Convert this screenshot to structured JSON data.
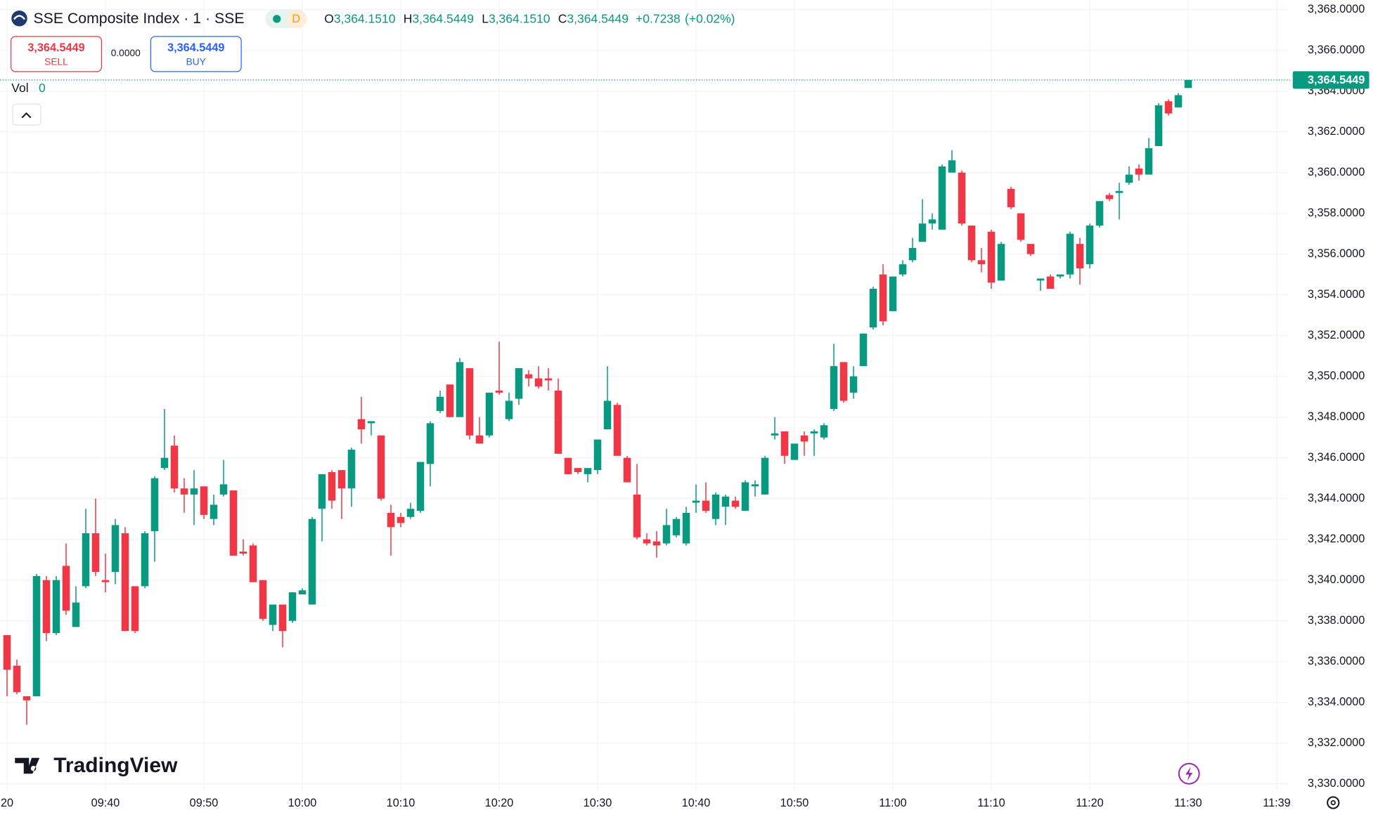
{
  "header": {
    "symbol": "SSE Composite Index · 1 · SSE",
    "badge": "D",
    "ohlc": [
      {
        "key": "O",
        "value": "3,364.1510"
      },
      {
        "key": "H",
        "value": "3,364.5449"
      },
      {
        "key": "L",
        "value": "3,364.1510"
      },
      {
        "key": "C",
        "value": "3,364.5449"
      }
    ],
    "change": "+0.7238",
    "change_percent": "(+0.02%)"
  },
  "trade": {
    "sell_price": "3,364.5449",
    "sell_label": "SELL",
    "spread": "0.0000",
    "buy_price": "3,364.5449",
    "buy_label": "BUY"
  },
  "volume": {
    "label": "Vol",
    "value": "0"
  },
  "brand": "TradingView",
  "chart_data": {
    "type": "candlestick",
    "up_color": "#089981",
    "down_color": "#f23645",
    "grid": true,
    "x": [
      "09:30",
      "09:31",
      "09:32",
      "09:33",
      "09:34",
      "09:35",
      "09:36",
      "09:37",
      "09:38",
      "09:39",
      "09:40",
      "09:41",
      "09:42",
      "09:43",
      "09:44",
      "09:45",
      "09:46",
      "09:47",
      "09:48",
      "09:49",
      "09:50",
      "09:51",
      "09:52",
      "09:53",
      "09:54",
      "09:55",
      "09:56",
      "09:57",
      "09:58",
      "09:59",
      "10:00",
      "10:01",
      "10:02",
      "10:03",
      "10:04",
      "10:05",
      "10:06",
      "10:07",
      "10:08",
      "10:09",
      "10:10",
      "10:11",
      "10:12",
      "10:13",
      "10:14",
      "10:15",
      "10:16",
      "10:17",
      "10:18",
      "10:19",
      "10:20",
      "10:21",
      "10:22",
      "10:23",
      "10:24",
      "10:25",
      "10:26",
      "10:27",
      "10:28",
      "10:29",
      "10:30",
      "10:31",
      "10:32",
      "10:33",
      "10:34",
      "10:35",
      "10:36",
      "10:37",
      "10:38",
      "10:39",
      "10:40",
      "10:41",
      "10:42",
      "10:43",
      "10:44",
      "10:45",
      "10:46",
      "10:47",
      "10:48",
      "10:49",
      "10:50",
      "10:51",
      "10:52",
      "10:53",
      "10:54",
      "10:55",
      "10:56",
      "10:57",
      "10:58",
      "10:59",
      "11:00",
      "11:01",
      "11:02",
      "11:03",
      "11:04",
      "11:05",
      "11:06",
      "11:07",
      "11:08",
      "11:09",
      "11:10",
      "11:11",
      "11:12",
      "11:13",
      "11:14",
      "11:15",
      "11:16",
      "11:17",
      "11:18",
      "11:19",
      "11:20",
      "11:21",
      "11:22",
      "11:23",
      "11:24",
      "11:25",
      "11:26",
      "11:27",
      "11:28",
      "11:29",
      "11:30"
    ],
    "open": [
      3337.3,
      3335.8,
      3334.3,
      3334.3,
      3340.0,
      3337.4,
      3340.7,
      3337.7,
      3339.7,
      3342.3,
      3340.0,
      3340.4,
      3342.3,
      3339.7,
      3339.7,
      3342.4,
      3345.5,
      3346.6,
      3344.5,
      3344.2,
      3344.6,
      3343.0,
      3344.2,
      3344.4,
      3341.4,
      3341.7,
      3340.0,
      3337.8,
      3338.8,
      3338.0,
      3339.3,
      3338.8,
      3343.5,
      3345.3,
      3345.4,
      3344.5,
      3347.9,
      3347.7,
      3347.1,
      3343.3,
      3343.1,
      3343.1,
      3343.4,
      3345.7,
      3348.3,
      3349.6,
      3348.0,
      3350.4,
      3347.1,
      3347.1,
      3349.3,
      3347.9,
      3348.9,
      3350.1,
      3349.9,
      3349.9,
      3349.3,
      3346.0,
      3345.5,
      3345.2,
      3345.4,
      3347.4,
      3348.6,
      3346.0,
      3344.2,
      3342.0,
      3341.9,
      3341.8,
      3342.2,
      3341.8,
      3343.8,
      3343.9,
      3343.0,
      3343.6,
      3343.9,
      3343.4,
      3344.6,
      3344.2,
      3347.1,
      3347.3,
      3345.9,
      3347.1,
      3347.2,
      3347.0,
      3348.4,
      3350.7,
      3349.2,
      3350.5,
      3352.4,
      3355.0,
      3353.2,
      3355.0,
      3355.7,
      3356.6,
      3357.5,
      3357.2,
      3360.0,
      3360.0,
      3357.4,
      3355.7,
      3357.1,
      3354.7,
      3359.2,
      3358.0,
      3356.5,
      3354.7,
      3354.9,
      3354.9,
      3355.0,
      3356.5,
      3355.5,
      3357.4,
      3358.9,
      3359.0,
      3359.5,
      3360.2,
      3359.9,
      3361.3,
      3363.5,
      3363.2,
      3364.151
    ],
    "high": [
      3337.3,
      3336.1,
      3334.3,
      3340.3,
      3340.2,
      3340.2,
      3341.8,
      3339.7,
      3343.5,
      3344.0,
      3341.3,
      3343.0,
      3342.6,
      3339.7,
      3342.4,
      3345.1,
      3348.4,
      3347.1,
      3345.0,
      3345.4,
      3344.6,
      3344.2,
      3345.9,
      3344.4,
      3342.0,
      3341.8,
      3340.0,
      3338.8,
      3338.8,
      3339.4,
      3339.6,
      3343.1,
      3345.2,
      3345.4,
      3345.4,
      3346.5,
      3349.0,
      3347.8,
      3347.1,
      3343.7,
      3343.3,
      3343.8,
      3345.8,
      3347.8,
      3349.3,
      3349.6,
      3350.9,
      3350.4,
      3348.0,
      3349.2,
      3351.7,
      3349.2,
      3350.4,
      3350.3,
      3350.5,
      3350.4,
      3349.9,
      3346.0,
      3345.5,
      3345.5,
      3346.9,
      3350.5,
      3348.7,
      3346.1,
      3345.7,
      3342.3,
      3342.4,
      3343.5,
      3343.1,
      3343.6,
      3344.7,
      3344.8,
      3344.3,
      3344.2,
      3344.1,
      3344.9,
      3344.9,
      3346.1,
      3348.0,
      3347.3,
      3346.7,
      3347.3,
      3347.4,
      3347.7,
      3351.6,
      3350.7,
      3350.5,
      3352.1,
      3354.4,
      3355.5,
      3354.9,
      3355.7,
      3356.8,
      3358.7,
      3358.0,
      3360.4,
      3361.1,
      3360.1,
      3357.4,
      3356.3,
      3357.2,
      3356.6,
      3359.3,
      3358.0,
      3356.5,
      3354.8,
      3355.0,
      3355.0,
      3357.1,
      3356.8,
      3357.5,
      3358.6,
      3359.0,
      3359.5,
      3360.3,
      3360.4,
      3361.7,
      3363.4,
      3363.6,
      3363.9,
      3364.5449
    ],
    "low": [
      3334.3,
      3334.4,
      3332.9,
      3334.3,
      3337.0,
      3337.3,
      3338.3,
      3337.7,
      3339.6,
      3340.2,
      3339.4,
      3339.8,
      3337.5,
      3337.4,
      3339.6,
      3340.9,
      3345.4,
      3344.3,
      3343.3,
      3342.7,
      3343.0,
      3342.7,
      3344.1,
      3341.2,
      3341.2,
      3339.9,
      3338.0,
      3337.5,
      3336.7,
      3337.9,
      3339.3,
      3338.8,
      3341.9,
      3343.5,
      3343.0,
      3343.6,
      3346.7,
      3347.1,
      3343.9,
      3341.2,
      3342.6,
      3343.0,
      3343.3,
      3344.6,
      3348.2,
      3348.0,
      3348.0,
      3346.9,
      3346.7,
      3347.0,
      3349.1,
      3347.8,
      3348.6,
      3349.5,
      3349.4,
      3349.3,
      3346.2,
      3345.2,
      3345.2,
      3344.8,
      3345.2,
      3347.4,
      3346.1,
      3344.8,
      3342.0,
      3341.7,
      3341.1,
      3341.7,
      3342.1,
      3341.7,
      3343.3,
      3343.3,
      3342.7,
      3342.7,
      3343.5,
      3343.4,
      3344.1,
      3344.2,
      3346.9,
      3345.7,
      3345.9,
      3346.1,
      3346.1,
      3346.9,
      3348.3,
      3348.7,
      3348.9,
      3350.5,
      3352.3,
      3352.5,
      3353.2,
      3354.9,
      3355.6,
      3356.6,
      3357.2,
      3357.2,
      3360.0,
      3357.4,
      3355.6,
      3355.1,
      3354.3,
      3354.7,
      3358.2,
      3356.6,
      3355.9,
      3354.2,
      3354.3,
      3354.8,
      3354.8,
      3354.5,
      3355.3,
      3357.3,
      3358.6,
      3357.7,
      3359.4,
      3359.6,
      3359.9,
      3361.3,
      3362.8,
      3363.2,
      3364.151
    ],
    "close": [
      3335.6,
      3334.5,
      3334.1,
      3340.2,
      3337.4,
      3340.0,
      3338.5,
      3338.9,
      3342.3,
      3340.4,
      3339.9,
      3342.7,
      3337.5,
      3337.5,
      3342.3,
      3345.0,
      3346.0,
      3344.5,
      3344.2,
      3344.5,
      3343.2,
      3343.7,
      3344.7,
      3341.2,
      3341.3,
      3339.9,
      3338.1,
      3338.8,
      3337.5,
      3339.4,
      3339.5,
      3343.0,
      3345.2,
      3343.9,
      3344.5,
      3346.4,
      3347.4,
      3347.8,
      3344.0,
      3342.6,
      3342.8,
      3343.5,
      3345.8,
      3347.7,
      3349.0,
      3348.0,
      3350.7,
      3347.1,
      3346.7,
      3349.2,
      3349.2,
      3348.8,
      3350.4,
      3349.9,
      3349.5,
      3349.8,
      3346.2,
      3345.2,
      3345.3,
      3345.5,
      3346.9,
      3348.8,
      3346.1,
      3344.8,
      3342.1,
      3341.8,
      3341.7,
      3342.7,
      3343.0,
      3343.3,
      3343.9,
      3343.4,
      3344.2,
      3344.1,
      3343.6,
      3344.8,
      3344.7,
      3346.0,
      3347.2,
      3346.1,
      3346.7,
      3346.8,
      3347.3,
      3347.6,
      3350.5,
      3348.8,
      3350.0,
      3352.1,
      3354.3,
      3352.7,
      3354.9,
      3355.5,
      3356.3,
      3357.5,
      3357.7,
      3360.3,
      3360.6,
      3357.5,
      3355.7,
      3355.5,
      3354.6,
      3356.5,
      3358.3,
      3356.7,
      3356.0,
      3354.8,
      3354.3,
      3355.0,
      3357.0,
      3355.3,
      3357.4,
      3358.6,
      3358.7,
      3359.1,
      3359.9,
      3359.9,
      3361.2,
      3363.3,
      3362.9,
      3363.8,
      3364.5449
    ],
    "xticks": [
      {
        "value": "09:30",
        "label": "20"
      },
      "09:40",
      "09:50",
      "10:00",
      "10:10",
      "10:20",
      "10:30",
      "10:40",
      "10:50",
      "11:00",
      "11:10",
      "11:20",
      "11:30",
      "11:39"
    ],
    "ylim": [
      3329.68,
      3368.47
    ],
    "yticks": [
      {
        "value": 3330,
        "label": "3,330.0000"
      },
      {
        "value": 3332,
        "label": "3,332.0000"
      },
      {
        "value": 3334,
        "label": "3,334.0000"
      },
      {
        "value": 3336,
        "label": "3,336.0000"
      },
      {
        "value": 3338,
        "label": "3,338.0000"
      },
      {
        "value": 3340,
        "label": "3,340.0000"
      },
      {
        "value": 3342,
        "label": "3,342.0000"
      },
      {
        "value": 3344,
        "label": "3,344.0000"
      },
      {
        "value": 3346,
        "label": "3,346.0000"
      },
      {
        "value": 3348,
        "label": "3,348.0000"
      },
      {
        "value": 3350,
        "label": "3,350.0000"
      },
      {
        "value": 3352,
        "label": "3,352.0000"
      },
      {
        "value": 3354,
        "label": "3,354.0000"
      },
      {
        "value": 3356,
        "label": "3,356.0000"
      },
      {
        "value": 3358,
        "label": "3,358.0000"
      },
      {
        "value": 3360,
        "label": "3,360.0000"
      },
      {
        "value": 3362,
        "label": "3,362.0000"
      },
      {
        "value": 3364,
        "label": "3,364.0000"
      },
      {
        "value": 3366,
        "label": "3,366.0000"
      },
      {
        "value": 3368,
        "label": "3,368.0000"
      }
    ],
    "last_price": {
      "value": 3364.5449,
      "label": "3,364.5449"
    }
  }
}
